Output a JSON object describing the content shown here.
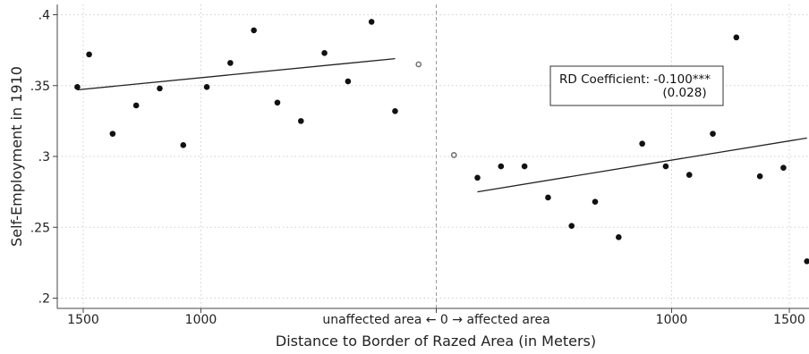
{
  "chart_data": {
    "type": "scatter",
    "title": "",
    "xlabel": "Distance to Border of Razed Area (in Meters)",
    "ylabel": "Self-Employment in 1910",
    "ylim": [
      0.2,
      0.4
    ],
    "grid": true,
    "yticks": [
      {
        "value": 0.2,
        "label": ".2"
      },
      {
        "value": 0.25,
        "label": ".25"
      },
      {
        "value": 0.3,
        "label": ".3"
      },
      {
        "value": 0.35,
        "label": ".35"
      },
      {
        "value": 0.4,
        "label": ".4"
      }
    ],
    "xticks": [
      {
        "value": -1500,
        "label": "1500"
      },
      {
        "value": -1000,
        "label": "1000"
      },
      {
        "value": 0,
        "label": "unaffected area ← 0 → affected area"
      },
      {
        "value": 1000,
        "label": "1000"
      },
      {
        "value": 1500,
        "label": "1500"
      }
    ],
    "cutoff": 0,
    "series": [
      {
        "marker": "filled",
        "x": [
          -1525,
          -1475,
          -1375,
          -1275,
          -1175,
          -1075,
          -975,
          -875,
          -775,
          -675,
          -575,
          -475,
          -375,
          -275,
          -175,
          175,
          275,
          375,
          475,
          575,
          675,
          775,
          875,
          975,
          1075,
          1175,
          1275,
          1375,
          1475,
          1575
        ],
        "y": [
          0.349,
          0.372,
          0.316,
          0.336,
          0.348,
          0.308,
          0.349,
          0.366,
          0.389,
          0.338,
          0.325,
          0.373,
          0.353,
          0.395,
          0.332,
          0.285,
          0.293,
          0.293,
          0.271,
          0.251,
          0.268,
          0.243,
          0.309,
          0.293,
          0.287,
          0.316,
          0.384,
          0.286,
          0.292,
          0.226
        ]
      },
      {
        "marker": "hollow",
        "x": [
          -75,
          75
        ],
        "y": [
          0.365,
          0.301
        ]
      }
    ],
    "fit_lines": [
      {
        "x": [
          -1525,
          -175
        ],
        "y": [
          0.347,
          0.369
        ]
      },
      {
        "x": [
          175,
          1575
        ],
        "y": [
          0.275,
          0.313
        ]
      }
    ],
    "annotation": {
      "line1": "RD Coefficient: -0.100***",
      "line2": "(0.028)"
    }
  }
}
